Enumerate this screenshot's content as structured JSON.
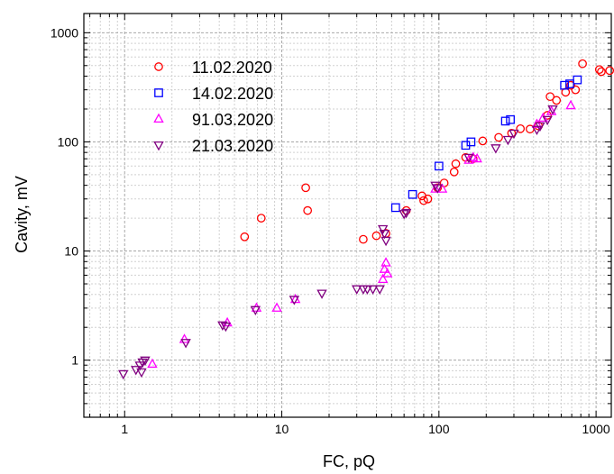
{
  "chart_data": {
    "type": "scatter",
    "title": "",
    "xlabel": "FC, pQ",
    "ylabel": "Cavity, mV",
    "x_scale": "log",
    "y_scale": "log",
    "xlim": [
      0.55,
      1250
    ],
    "ylim": [
      0.3,
      1500
    ],
    "x_ticks": [
      1,
      10,
      100,
      1000
    ],
    "x_tick_labels": [
      "1",
      "10",
      "100",
      "1000"
    ],
    "y_ticks": [
      1,
      10,
      100,
      1000
    ],
    "y_tick_labels": [
      "1",
      "10",
      "100",
      "1000"
    ],
    "grid": true,
    "legend_position": "top-left",
    "series": [
      {
        "name": "11.02.2020",
        "marker": "circle",
        "color": "#ff0000",
        "points": [
          [
            5.8,
            13.5
          ],
          [
            7.4,
            20
          ],
          [
            14.2,
            38
          ],
          [
            14.6,
            23.5
          ],
          [
            33,
            12.8
          ],
          [
            40,
            13.8
          ],
          [
            46,
            14.5
          ],
          [
            62,
            23.5
          ],
          [
            78,
            32
          ],
          [
            80,
            29
          ],
          [
            85,
            30
          ],
          [
            98,
            38
          ],
          [
            108,
            42
          ],
          [
            125,
            53
          ],
          [
            128,
            63
          ],
          [
            148,
            72
          ],
          [
            165,
            70
          ],
          [
            190,
            102
          ],
          [
            240,
            110
          ],
          [
            290,
            120
          ],
          [
            330,
            132
          ],
          [
            380,
            131
          ],
          [
            430,
            140
          ],
          [
            490,
            175
          ],
          [
            510,
            260
          ],
          [
            560,
            240
          ],
          [
            640,
            285
          ],
          [
            690,
            330
          ],
          [
            740,
            300
          ],
          [
            820,
            520
          ],
          [
            1050,
            460
          ],
          [
            1080,
            440
          ],
          [
            1220,
            450
          ]
        ]
      },
      {
        "name": "14.02.2020",
        "marker": "square",
        "color": "#0000ff",
        "points": [
          [
            53,
            25
          ],
          [
            68,
            33
          ],
          [
            100,
            60
          ],
          [
            148,
            93
          ],
          [
            160,
            100
          ],
          [
            265,
            155
          ],
          [
            285,
            160
          ],
          [
            630,
            330
          ],
          [
            680,
            340
          ],
          [
            760,
            370
          ]
        ]
      },
      {
        "name": "91.03.2020",
        "marker": "triangle-up",
        "color": "#ff00ff",
        "points": [
          [
            1.5,
            0.92
          ],
          [
            2.4,
            1.55
          ],
          [
            4.5,
            2.2
          ],
          [
            6.9,
            3.0
          ],
          [
            9.3,
            3.0
          ],
          [
            12.2,
            3.6
          ],
          [
            44,
            5.5
          ],
          [
            45,
            6.8
          ],
          [
            46,
            7.8
          ],
          [
            47,
            6.2
          ],
          [
            95,
            37
          ],
          [
            105,
            37
          ],
          [
            155,
            68
          ],
          [
            165,
            72
          ],
          [
            175,
            70
          ],
          [
            420,
            145
          ],
          [
            460,
            165
          ],
          [
            520,
            190
          ],
          [
            690,
            215
          ]
        ]
      },
      {
        "name": "21.03.2020",
        "marker": "triangle-down",
        "color": "#800080",
        "points": [
          [
            0.98,
            0.75
          ],
          [
            1.18,
            0.82
          ],
          [
            1.25,
            0.9
          ],
          [
            1.3,
            0.96
          ],
          [
            1.35,
            1.0
          ],
          [
            1.28,
            0.78
          ],
          [
            2.45,
            1.45
          ],
          [
            4.2,
            2.1
          ],
          [
            4.4,
            2.05
          ],
          [
            6.8,
            2.9
          ],
          [
            12.0,
            3.6
          ],
          [
            18,
            4.1
          ],
          [
            30,
            4.5
          ],
          [
            33,
            4.5
          ],
          [
            35,
            4.5
          ],
          [
            38,
            4.5
          ],
          [
            42,
            4.5
          ],
          [
            44,
            16
          ],
          [
            45,
            14.5
          ],
          [
            46,
            12.5
          ],
          [
            60,
            22
          ],
          [
            62,
            22.5
          ],
          [
            95,
            40
          ],
          [
            98,
            38
          ],
          [
            155,
            72
          ],
          [
            230,
            88
          ],
          [
            275,
            105
          ],
          [
            300,
            120
          ],
          [
            420,
            130
          ],
          [
            440,
            140
          ],
          [
            490,
            160
          ],
          [
            530,
            200
          ]
        ]
      }
    ]
  }
}
